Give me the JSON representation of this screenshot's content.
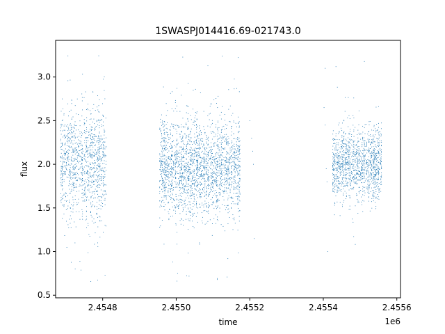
{
  "chart_data": {
    "type": "scatter",
    "title": "1SWASPJ014416.69-021743.0",
    "xlabel": "time",
    "ylabel": "flux",
    "x_offset_label": "1e6",
    "xlim": [
      2454672,
      2455610
    ],
    "ylim": [
      0.47,
      3.42
    ],
    "x_ticks": [
      {
        "value": 2454800,
        "label": "2.4548"
      },
      {
        "value": 2455000,
        "label": "2.4550"
      },
      {
        "value": 2455200,
        "label": "2.4552"
      },
      {
        "value": 2455400,
        "label": "2.4554"
      },
      {
        "value": 2455600,
        "label": "2.4556"
      }
    ],
    "y_ticks": [
      {
        "value": 0.5,
        "label": "0.5"
      },
      {
        "value": 1.0,
        "label": "1.0"
      },
      {
        "value": 1.5,
        "label": "1.5"
      },
      {
        "value": 2.0,
        "label": "2.0"
      },
      {
        "value": 2.5,
        "label": "2.5"
      },
      {
        "value": 3.0,
        "label": "3.0"
      }
    ],
    "grid": false,
    "legend": "none",
    "marker_color": "#1f77b4",
    "observing_seasons": [
      {
        "x_start": 2454685,
        "x_end": 2454810,
        "typical_flux_range": [
          1.4,
          2.6
        ],
        "max_flux": 3.3,
        "min_flux": 0.6
      },
      {
        "x_start": 2454955,
        "x_end": 2455175,
        "typical_flux_range": [
          1.4,
          2.5
        ],
        "max_flux": 3.3,
        "min_flux": 0.65
      },
      {
        "x_start": 2455425,
        "x_end": 2455560,
        "typical_flux_range": [
          1.6,
          2.4
        ],
        "max_flux": 3.25,
        "min_flux": 0.62
      }
    ],
    "outlier_points": [
      {
        "x": 2455205,
        "y": 2.3
      },
      {
        "x": 2455208,
        "y": 2.15
      },
      {
        "x": 2455210,
        "y": 2.0
      },
      {
        "x": 2455212,
        "y": 1.15
      },
      {
        "x": 2455200,
        "y": 2.5
      },
      {
        "x": 2455405,
        "y": 3.1
      },
      {
        "x": 2455402,
        "y": 2.65
      },
      {
        "x": 2455405,
        "y": 2.45
      },
      {
        "x": 2455408,
        "y": 1.95
      },
      {
        "x": 2455410,
        "y": 1.8
      },
      {
        "x": 2455412,
        "y": 1.0
      }
    ]
  }
}
